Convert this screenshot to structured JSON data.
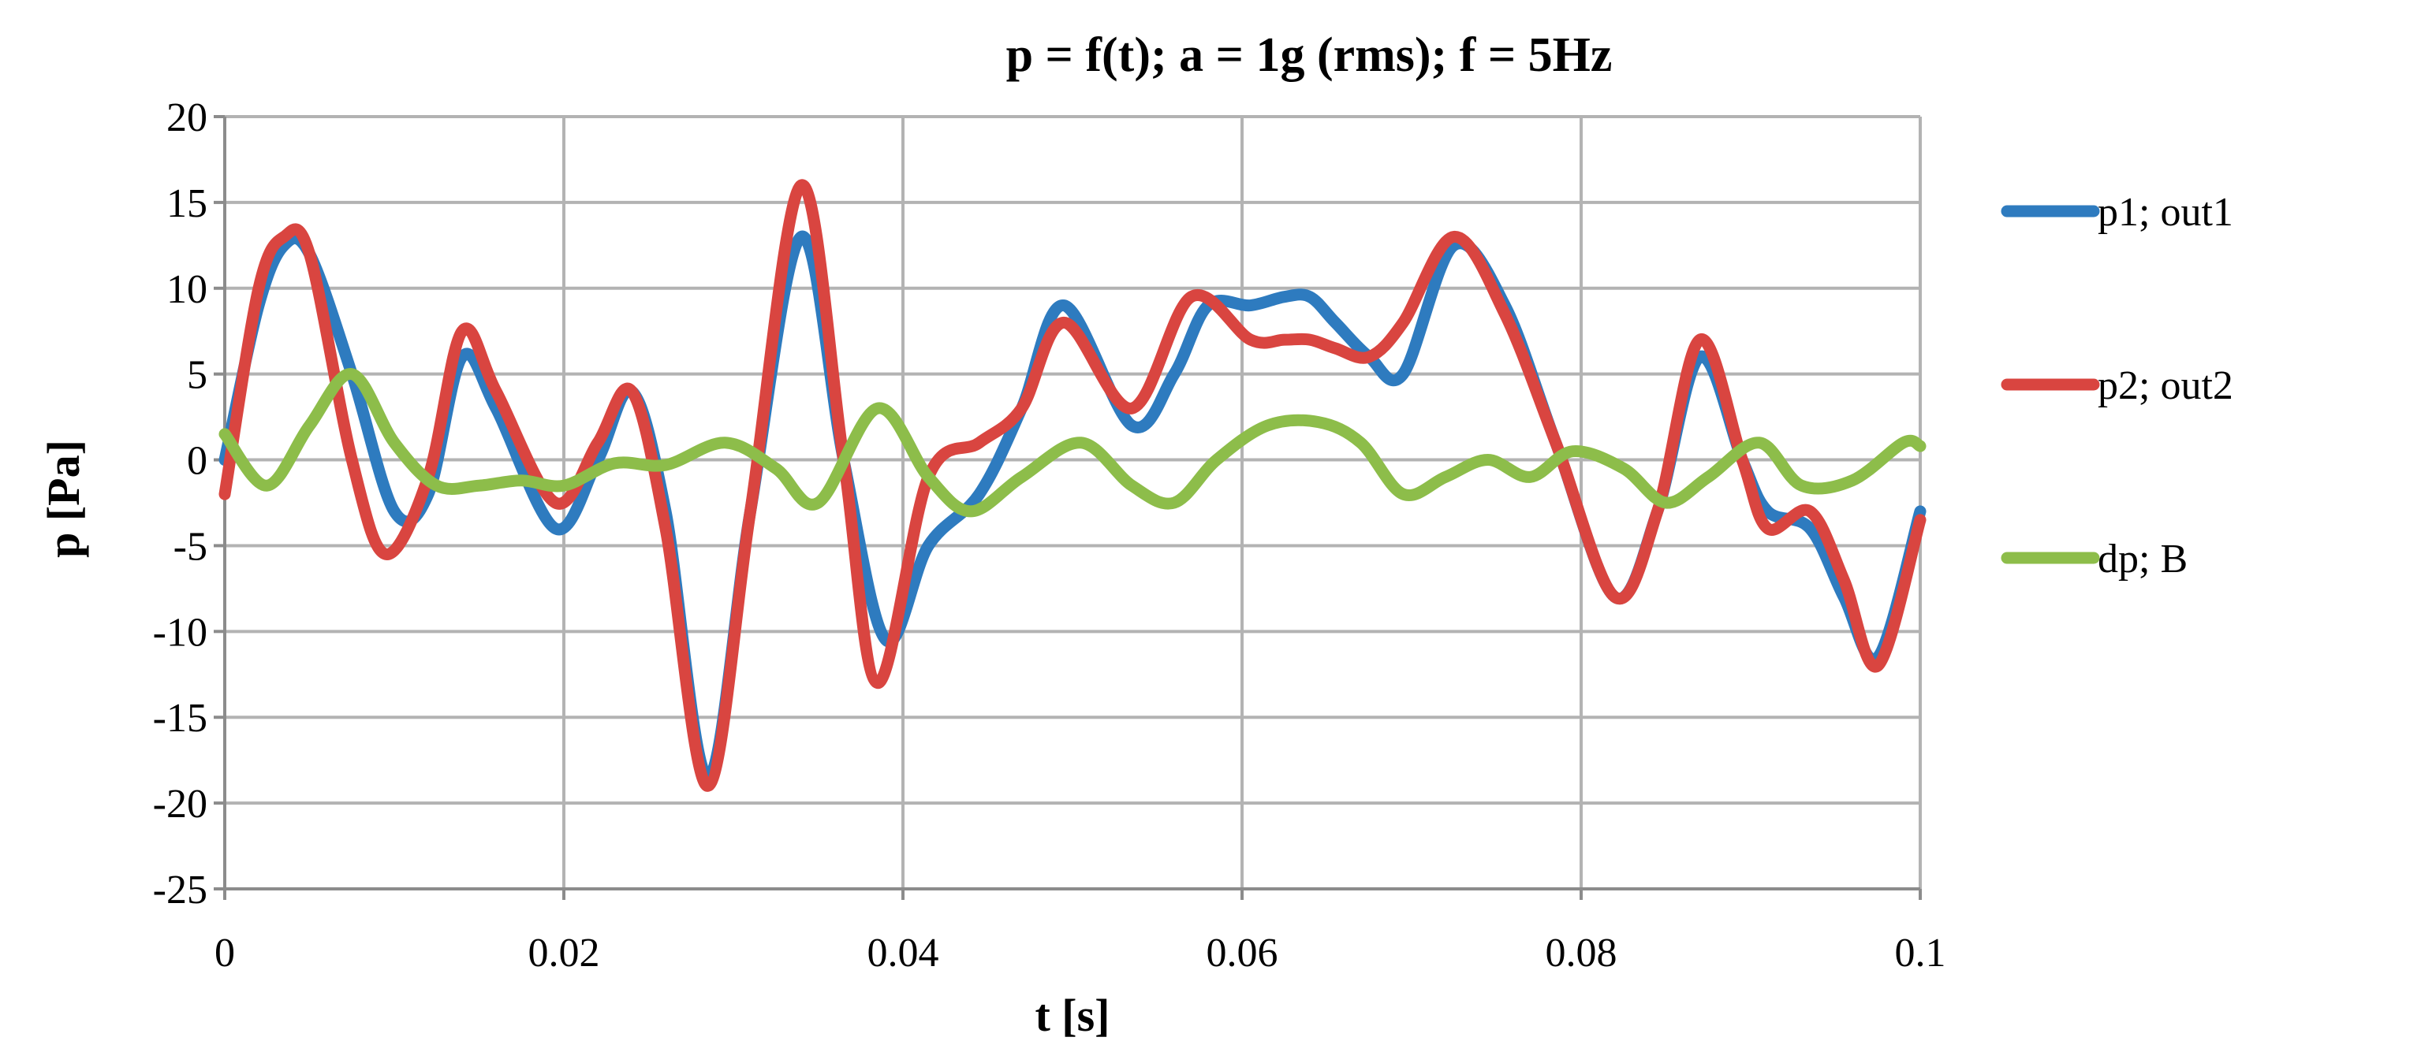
{
  "chart_data": {
    "type": "line",
    "title": "p = f(t); a = 1g (rms); f = 5Hz",
    "xlabel": "t [s]",
    "ylabel": "p [Pa]",
    "xlim": [
      0,
      0.1
    ],
    "ylim": [
      -25,
      20
    ],
    "xticks": [
      0,
      0.02,
      0.04,
      0.06,
      0.08,
      0.1
    ],
    "xtick_labels": [
      "0",
      "0.02",
      "0.04",
      "0.06",
      "0.08",
      "0.1"
    ],
    "yticks": [
      -25,
      -20,
      -15,
      -10,
      -5,
      0,
      5,
      10,
      15,
      20
    ],
    "ytick_labels": [
      "-25",
      "-20",
      "-15",
      "-10",
      "-5",
      "0",
      "5",
      "10",
      "15",
      "20"
    ],
    "grid": true,
    "legend_position": "right",
    "series": [
      {
        "name": "p1; out1",
        "color": "#2e7bbf",
        "x": [
          0,
          0.002,
          0.0035,
          0.005,
          0.0075,
          0.01,
          0.012,
          0.014,
          0.016,
          0.0195,
          0.022,
          0.024,
          0.026,
          0.0285,
          0.031,
          0.034,
          0.0365,
          0.039,
          0.0415,
          0.0445,
          0.047,
          0.0495,
          0.0535,
          0.056,
          0.058,
          0.0605,
          0.0625,
          0.064,
          0.0655,
          0.0675,
          0.0695,
          0.0725,
          0.0755,
          0.0785,
          0.082,
          0.0845,
          0.087,
          0.0895,
          0.091,
          0.0935,
          0.0955,
          0.0975,
          0.1
        ],
        "y": [
          0,
          9,
          12.5,
          12,
          5,
          -3,
          -2,
          6,
          3,
          -4,
          0,
          4,
          -3,
          -18.5,
          -3,
          13,
          0,
          -10.5,
          -5,
          -2,
          3,
          9,
          2,
          5,
          9,
          9,
          9.5,
          9.5,
          8,
          6,
          5,
          12.5,
          9,
          1,
          -8,
          -3,
          6,
          0,
          -3,
          -4,
          -8,
          -11.5,
          -3
        ]
      },
      {
        "name": "p2; out2",
        "color": "#d94540",
        "x": [
          0,
          0.002,
          0.0035,
          0.005,
          0.0075,
          0.0095,
          0.012,
          0.014,
          0.016,
          0.0195,
          0.022,
          0.024,
          0.026,
          0.0285,
          0.031,
          0.034,
          0.0365,
          0.0385,
          0.0415,
          0.0445,
          0.047,
          0.0495,
          0.0535,
          0.057,
          0.0605,
          0.0625,
          0.064,
          0.0655,
          0.0675,
          0.0695,
          0.0725,
          0.0755,
          0.0785,
          0.082,
          0.0845,
          0.087,
          0.0895,
          0.091,
          0.0935,
          0.0955,
          0.0975,
          0.1
        ],
        "y": [
          -2,
          10,
          13,
          12,
          0,
          -5.5,
          -1,
          7.5,
          4,
          -2.5,
          1,
          4,
          -4,
          -19,
          -3,
          16,
          0,
          -13,
          -1,
          1,
          3,
          8,
          3,
          9.5,
          7,
          7,
          7,
          6.5,
          6,
          8,
          13,
          8.5,
          1,
          -8,
          -3,
          7,
          0,
          -4,
          -3,
          -7,
          -12,
          -3.5
        ]
      },
      {
        "name": "dp; B",
        "color": "#8dbd4a",
        "x": [
          0,
          0.0025,
          0.005,
          0.0075,
          0.01,
          0.0125,
          0.015,
          0.0175,
          0.02,
          0.023,
          0.026,
          0.0295,
          0.0325,
          0.035,
          0.0385,
          0.0415,
          0.044,
          0.047,
          0.0505,
          0.0535,
          0.056,
          0.0585,
          0.0615,
          0.0645,
          0.067,
          0.0695,
          0.072,
          0.0745,
          0.077,
          0.0795,
          0.0825,
          0.085,
          0.0875,
          0.0905,
          0.093,
          0.096,
          0.099,
          0.1
        ],
        "y": [
          1.5,
          -1.5,
          2,
          5,
          1,
          -1.5,
          -1.5,
          -1.2,
          -1.5,
          -0.2,
          -0.3,
          1,
          -0.5,
          -2.5,
          3,
          -1,
          -3,
          -1,
          1,
          -1.5,
          -2.5,
          0,
          2,
          2.2,
          1,
          -2,
          -1,
          0,
          -1,
          0.5,
          -0.5,
          -2.5,
          -1,
          1,
          -1.5,
          -1.2,
          1,
          0.8
        ]
      }
    ]
  }
}
